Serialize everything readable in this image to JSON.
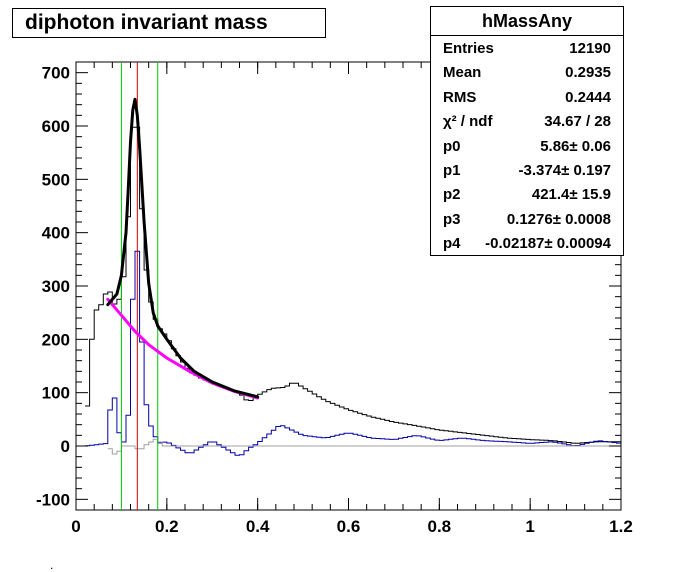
{
  "title": "diphoton invariant mass",
  "stats": {
    "name": "hMassAny",
    "rows": [
      {
        "key": "Entries",
        "value": "12190"
      },
      {
        "key": "Mean",
        "value": "0.2935"
      },
      {
        "key": "RMS",
        "value": "0.2444"
      },
      {
        "key": "χ² / ndf",
        "value": "34.67 / 28"
      },
      {
        "key": "p0",
        "value": "5.86± 0.06"
      },
      {
        "key": "p1",
        "value": "-3.374± 0.197"
      },
      {
        "key": "p2",
        "value": "421.4± 15.9"
      },
      {
        "key": "p3",
        "value": "0.1276± 0.0008"
      },
      {
        "key": "p4",
        "value": "-0.02187± 0.00094"
      }
    ]
  },
  "footer_mark": ".",
  "colors": {
    "data": "#000000",
    "blue": "#0000aa",
    "grey": "#a0a0a0",
    "fit": "#000000",
    "background": "#ff00ff",
    "window": "#00cc00",
    "peak": "#cc0000"
  },
  "chart_data": {
    "type": "histogram",
    "xlim": [
      0,
      1.2
    ],
    "ylim": [
      -120,
      720
    ],
    "xticks": [
      "0",
      "0.2",
      "0.4",
      "0.6",
      "0.8",
      "1",
      "1.2"
    ],
    "yticks": [
      "-100",
      "0",
      "100",
      "200",
      "300",
      "400",
      "500",
      "600",
      "700"
    ],
    "bin_width": 0.01,
    "series": [
      {
        "color_key": "data",
        "points": [
          [
            0.02,
            0
          ],
          [
            0.03,
            150
          ],
          [
            0.04,
            250
          ],
          [
            0.06,
            270
          ],
          [
            0.07,
            300
          ],
          [
            0.09,
            255
          ],
          [
            0.1,
            295
          ],
          [
            0.11,
            340
          ],
          [
            0.12,
            520
          ],
          [
            0.13,
            675
          ],
          [
            0.14,
            520
          ],
          [
            0.15,
            370
          ],
          [
            0.16,
            290
          ],
          [
            0.17,
            250
          ],
          [
            0.18,
            225
          ],
          [
            0.2,
            205
          ],
          [
            0.22,
            175
          ],
          [
            0.25,
            140
          ],
          [
            0.28,
            125
          ],
          [
            0.3,
            120
          ],
          [
            0.33,
            108
          ],
          [
            0.36,
            100
          ],
          [
            0.38,
            82
          ],
          [
            0.4,
            95
          ],
          [
            0.43,
            108
          ],
          [
            0.46,
            110
          ],
          [
            0.48,
            120
          ],
          [
            0.5,
            110
          ],
          [
            0.55,
            85
          ],
          [
            0.6,
            68
          ],
          [
            0.65,
            55
          ],
          [
            0.7,
            45
          ],
          [
            0.75,
            38
          ],
          [
            0.8,
            30
          ],
          [
            0.85,
            25
          ],
          [
            0.9,
            20
          ],
          [
            0.95,
            15
          ],
          [
            1.0,
            12
          ],
          [
            1.05,
            10
          ],
          [
            1.1,
            5
          ],
          [
            1.15,
            8
          ],
          [
            1.2,
            8
          ]
        ]
      },
      {
        "color_key": "blue",
        "points": [
          [
            0.02,
            0
          ],
          [
            0.07,
            5
          ],
          [
            0.08,
            130
          ],
          [
            0.09,
            50
          ],
          [
            0.1,
            0
          ],
          [
            0.11,
            15
          ],
          [
            0.12,
            100
          ],
          [
            0.13,
            450
          ],
          [
            0.14,
            280
          ],
          [
            0.15,
            110
          ],
          [
            0.16,
            45
          ],
          [
            0.17,
            30
          ],
          [
            0.18,
            5
          ],
          [
            0.2,
            8
          ],
          [
            0.25,
            -15
          ],
          [
            0.3,
            10
          ],
          [
            0.33,
            -5
          ],
          [
            0.36,
            -20
          ],
          [
            0.38,
            -5
          ],
          [
            0.4,
            5
          ],
          [
            0.45,
            40
          ],
          [
            0.5,
            20
          ],
          [
            0.55,
            15
          ],
          [
            0.6,
            25
          ],
          [
            0.65,
            15
          ],
          [
            0.7,
            12
          ],
          [
            0.75,
            20
          ],
          [
            0.8,
            10
          ],
          [
            0.85,
            15
          ],
          [
            0.9,
            10
          ],
          [
            0.95,
            8
          ],
          [
            1.0,
            5
          ],
          [
            1.05,
            8
          ],
          [
            1.1,
            0
          ],
          [
            1.15,
            10
          ],
          [
            1.2,
            5
          ]
        ]
      },
      {
        "color_key": "grey",
        "points": [
          [
            0.07,
            0
          ],
          [
            0.09,
            -20
          ],
          [
            0.1,
            0
          ],
          [
            0.13,
            0
          ],
          [
            0.14,
            -10
          ],
          [
            0.15,
            0
          ],
          [
            0.18,
            15
          ],
          [
            0.19,
            0
          ],
          [
            1.2,
            0
          ]
        ]
      }
    ],
    "fit": {
      "color_key": "fit",
      "points": [
        [
          0.07,
          265
        ],
        [
          0.09,
          285
        ],
        [
          0.1,
          320
        ],
        [
          0.11,
          400
        ],
        [
          0.115,
          480
        ],
        [
          0.12,
          570
        ],
        [
          0.125,
          630
        ],
        [
          0.13,
          650
        ],
        [
          0.135,
          620
        ],
        [
          0.14,
          560
        ],
        [
          0.15,
          420
        ],
        [
          0.16,
          305
        ],
        [
          0.17,
          250
        ],
        [
          0.18,
          225
        ],
        [
          0.2,
          200
        ],
        [
          0.23,
          165
        ],
        [
          0.26,
          140
        ],
        [
          0.3,
          120
        ],
        [
          0.35,
          103
        ],
        [
          0.4,
          92
        ]
      ]
    },
    "background_fit": {
      "color_key": "background",
      "points": [
        [
          0.07,
          275
        ],
        [
          0.1,
          245
        ],
        [
          0.13,
          215
        ],
        [
          0.16,
          190
        ],
        [
          0.2,
          165
        ],
        [
          0.25,
          140
        ],
        [
          0.3,
          118
        ],
        [
          0.35,
          102
        ],
        [
          0.4,
          90
        ]
      ]
    },
    "vertical_lines": [
      {
        "x": 0.1,
        "color_key": "window"
      },
      {
        "x": 0.18,
        "color_key": "window"
      },
      {
        "x": 0.135,
        "color_key": "peak"
      }
    ]
  }
}
